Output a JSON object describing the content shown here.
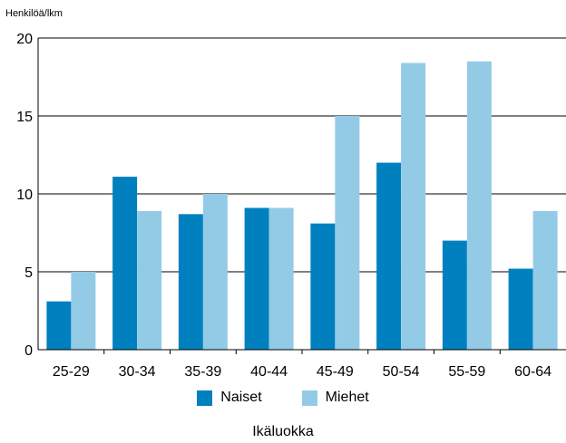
{
  "chart_data": {
    "type": "bar",
    "ylabel": "Henkilöä/lkm",
    "xlabel": "Ikäluokka",
    "categories": [
      "25-29",
      "30-34",
      "35-39",
      "40-44",
      "45-49",
      "50-54",
      "55-59",
      "60-64"
    ],
    "series": [
      {
        "name": "Naiset",
        "color": "#0080bf",
        "values": [
          3.1,
          11.1,
          8.7,
          9.1,
          8.1,
          12.0,
          7.0,
          5.2
        ]
      },
      {
        "name": "Miehet",
        "color": "#93cbe7",
        "values": [
          5.0,
          8.9,
          10.0,
          9.1,
          15.0,
          18.4,
          18.5,
          8.9
        ]
      }
    ],
    "ylim": [
      0,
      20
    ],
    "yticks": [
      0,
      5,
      10,
      15,
      20
    ],
    "grid": true,
    "legend_position": "bottom"
  }
}
